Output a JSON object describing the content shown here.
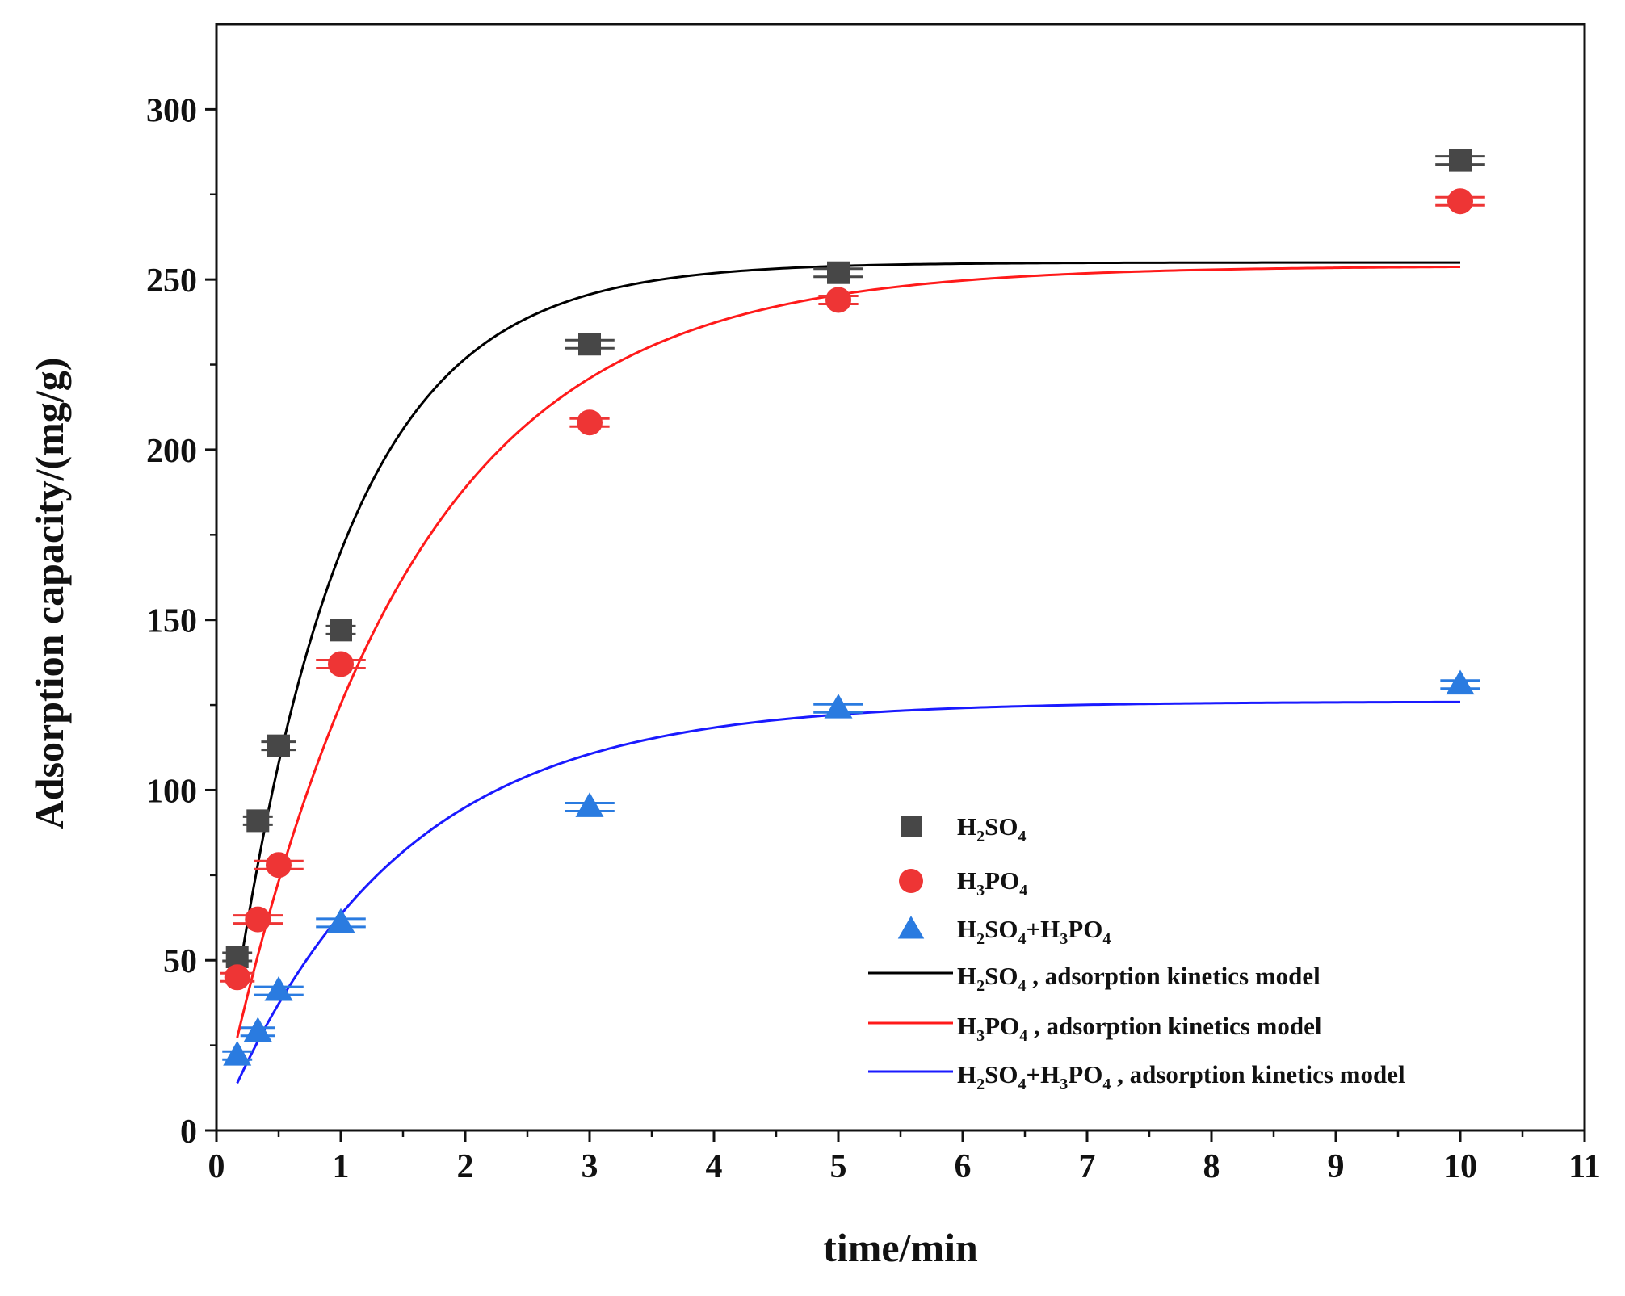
{
  "chart_data": {
    "type": "scatter",
    "xlabel": "time/min",
    "ylabel": "Adsorption capacity/(mg/g)",
    "xlim": [
      0,
      11
    ],
    "ylim": [
      0,
      325
    ],
    "xticks": [
      0,
      1,
      2,
      3,
      4,
      5,
      6,
      7,
      8,
      9,
      10,
      11
    ],
    "yticks": [
      0,
      50,
      100,
      150,
      200,
      250,
      300
    ],
    "grid": false,
    "legend_position": "bottom-right",
    "series": [
      {
        "name": "H2SO4",
        "legend": {
          "parts": [
            [
              "H",
              ""
            ],
            [
              "2",
              "sub"
            ],
            [
              "SO",
              ""
            ],
            [
              "4",
              "sub"
            ]
          ]
        },
        "marker": "square",
        "color": "#474747",
        "x": [
          0.167,
          0.333,
          0.5,
          1,
          3,
          5,
          10
        ],
        "y": [
          51,
          91,
          113,
          147,
          231,
          252,
          285
        ],
        "xerr": [
          0.12,
          0.12,
          0.14,
          0.12,
          0.2,
          0.2,
          0.2
        ]
      },
      {
        "name": "H3PO4",
        "legend": {
          "parts": [
            [
              "H",
              ""
            ],
            [
              "3",
              "sub"
            ],
            [
              "PO",
              ""
            ],
            [
              "4",
              "sub"
            ]
          ]
        },
        "marker": "circle",
        "color": "#ee3535",
        "x": [
          0.167,
          0.333,
          0.5,
          1,
          3,
          5,
          10
        ],
        "y": [
          45,
          62,
          78,
          137,
          208,
          244,
          273
        ],
        "xerr": [
          0.14,
          0.2,
          0.2,
          0.2,
          0.16,
          0.16,
          0.2
        ]
      },
      {
        "name": "H2SO4+H3PO4",
        "legend": {
          "parts": [
            [
              "H",
              ""
            ],
            [
              "2",
              "sub"
            ],
            [
              "SO",
              ""
            ],
            [
              "4",
              "sub"
            ],
            [
              "+H",
              ""
            ],
            [
              "3",
              "sub"
            ],
            [
              "PO",
              ""
            ],
            [
              "4",
              "sub"
            ]
          ]
        },
        "marker": "triangle",
        "color": "#2a7be0",
        "x": [
          0.167,
          0.333,
          0.5,
          1,
          3,
          5,
          10
        ],
        "y": [
          22,
          29,
          41,
          61,
          95,
          124,
          131
        ],
        "xerr": [
          0.12,
          0.14,
          0.2,
          0.2,
          0.2,
          0.2,
          0.16
        ]
      }
    ],
    "model_lines": [
      {
        "name": "H2SO4 , adsorption kinetics model",
        "legend": {
          "parts": [
            [
              "H",
              ""
            ],
            [
              "2",
              "sub"
            ],
            [
              "SO",
              ""
            ],
            [
              "4",
              "sub"
            ],
            [
              " , adsorption kinetics model",
              ""
            ]
          ]
        },
        "color": "#000000",
        "qe": 255,
        "k": 1.1,
        "x_start": 0.167,
        "x_end": 10
      },
      {
        "name": "H3PO4 , adsorption kinetics model",
        "legend": {
          "parts": [
            [
              "H",
              ""
            ],
            [
              "3",
              "sub"
            ],
            [
              "PO",
              ""
            ],
            [
              "4",
              "sub"
            ],
            [
              " , adsorption kinetics model",
              ""
            ]
          ]
        },
        "color": "#ff1a1a",
        "qe": 254,
        "k": 0.68,
        "x_start": 0.167,
        "x_end": 10
      },
      {
        "name": "H2SO4+H3PO4 , adsorption kinetics model",
        "legend": {
          "parts": [
            [
              "H",
              ""
            ],
            [
              "2",
              "sub"
            ],
            [
              "SO",
              ""
            ],
            [
              "4",
              "sub"
            ],
            [
              "+H",
              ""
            ],
            [
              "3",
              "sub"
            ],
            [
              "PO",
              ""
            ],
            [
              "4",
              "sub"
            ],
            [
              " , adsorption kinetics model",
              ""
            ]
          ]
        },
        "color": "#1a1aff",
        "qe": 126,
        "k": 0.7,
        "x_start": 0.167,
        "x_end": 10
      }
    ]
  }
}
